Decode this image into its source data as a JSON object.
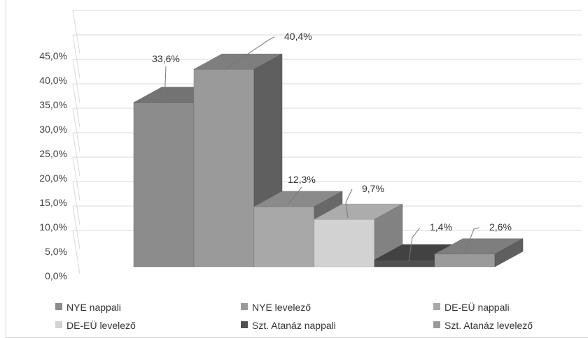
{
  "chart_data": {
    "type": "bar",
    "title": "",
    "categories": [
      "NYE nappali",
      "NYE levelező",
      "DE-EÜ nappali",
      "DE-EÜ levelező",
      "Szt. Atanáz nappali",
      "Szt. Atanáz levelező"
    ],
    "values": [
      33.6,
      40.4,
      12.3,
      9.7,
      1.4,
      2.6
    ],
    "value_labels": [
      "33,6%",
      "40,4%",
      "12,3%",
      "9,7%",
      "1,4%",
      "2,6%"
    ],
    "y_ticks": [
      "0,0%",
      "5,0%",
      "10,0%",
      "15,0%",
      "20,0%",
      "25,0%",
      "30,0%",
      "35,0%",
      "40,0%",
      "45,0%"
    ],
    "ylim": [
      0,
      45
    ],
    "grid": true,
    "legend_position": "bottom",
    "colors": [
      "#8c8c8c",
      "#9a9a9a",
      "#a8a8a8",
      "#d2d2d2",
      "#505050",
      "#9a9a9a"
    ]
  }
}
